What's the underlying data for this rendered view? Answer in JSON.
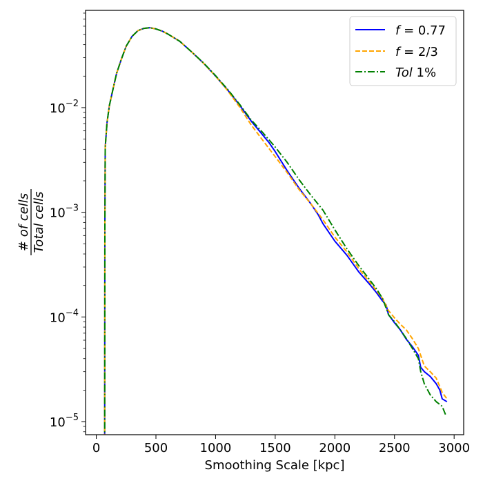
{
  "chart_data": {
    "type": "line",
    "xlabel": "Smoothing Scale [kpc]",
    "ylabel": {
      "numerator": "# of cells",
      "denominator": "Total cells"
    },
    "xlim": [
      -90,
      3080
    ],
    "ylim": [
      7.5e-06,
      0.085
    ],
    "yscale": "log",
    "xticks": [
      0,
      500,
      1000,
      1500,
      2000,
      2500,
      3000
    ],
    "xtick_labels": [
      "0",
      "500",
      "1000",
      "1500",
      "2000",
      "2500",
      "3000"
    ],
    "yticks": [
      1e-05,
      0.0001,
      0.001,
      0.01
    ],
    "ytick_labels": [
      {
        "base": "10",
        "exp": "−5"
      },
      {
        "base": "10",
        "exp": "−4"
      },
      {
        "base": "10",
        "exp": "−3"
      },
      {
        "base": "10",
        "exp": "−2"
      }
    ],
    "grid": false,
    "legend_position": "top-right",
    "series": [
      {
        "name": "f = 0.77",
        "legend": {
          "var": "f",
          "rest": " = 0.77"
        },
        "color": "#0000ff",
        "style": "solid",
        "points": [
          [
            70,
            1e-06
          ],
          [
            72,
            0.0008
          ],
          [
            75,
            0.0042
          ],
          [
            90,
            0.0072
          ],
          [
            110,
            0.0105
          ],
          [
            140,
            0.015
          ],
          [
            170,
            0.0212
          ],
          [
            210,
            0.029
          ],
          [
            250,
            0.0385
          ],
          [
            300,
            0.048
          ],
          [
            350,
            0.0545
          ],
          [
            400,
            0.0572
          ],
          [
            450,
            0.058
          ],
          [
            500,
            0.0565
          ],
          [
            550,
            0.054
          ],
          [
            600,
            0.0505
          ],
          [
            700,
            0.043
          ],
          [
            800,
            0.034
          ],
          [
            900,
            0.0265
          ],
          [
            1000,
            0.02
          ],
          [
            1100,
            0.0148
          ],
          [
            1200,
            0.0106
          ],
          [
            1300,
            0.0074
          ],
          [
            1400,
            0.0054
          ],
          [
            1450,
            0.0046
          ],
          [
            1500,
            0.0038
          ],
          [
            1600,
            0.0025
          ],
          [
            1700,
            0.0017
          ],
          [
            1800,
            0.0012
          ],
          [
            1860,
            0.00095
          ],
          [
            1900,
            0.00078
          ],
          [
            2000,
            0.00053
          ],
          [
            2100,
            0.00039
          ],
          [
            2200,
            0.00027
          ],
          [
            2300,
            0.0002
          ],
          [
            2350,
            0.00017
          ],
          [
            2400,
            0.000142
          ],
          [
            2430,
            0.00013
          ],
          [
            2450,
            0.000105
          ],
          [
            2500,
            8.8e-05
          ],
          [
            2550,
            7.5e-05
          ],
          [
            2600,
            6.1e-05
          ],
          [
            2650,
            5.2e-05
          ],
          [
            2700,
            4.3e-05
          ],
          [
            2720,
            3.3e-05
          ],
          [
            2750,
            3e-05
          ],
          [
            2800,
            2.7e-05
          ],
          [
            2850,
            2.3e-05
          ],
          [
            2880,
            2e-05
          ],
          [
            2900,
            1.65e-05
          ],
          [
            2940,
            1.55e-05
          ]
        ]
      },
      {
        "name": "f = 2/3",
        "legend": {
          "var": "f",
          "rest": " = 2/3"
        },
        "color": "#ffa500",
        "style": "dashed",
        "points": [
          [
            70,
            1e-06
          ],
          [
            72,
            0.0008
          ],
          [
            75,
            0.0042
          ],
          [
            90,
            0.0072
          ],
          [
            110,
            0.0105
          ],
          [
            140,
            0.015
          ],
          [
            170,
            0.0212
          ],
          [
            210,
            0.029
          ],
          [
            250,
            0.0385
          ],
          [
            300,
            0.048
          ],
          [
            350,
            0.0545
          ],
          [
            400,
            0.0572
          ],
          [
            450,
            0.058
          ],
          [
            500,
            0.0565
          ],
          [
            550,
            0.054
          ],
          [
            600,
            0.0505
          ],
          [
            700,
            0.043
          ],
          [
            800,
            0.034
          ],
          [
            900,
            0.0265
          ],
          [
            1000,
            0.02
          ],
          [
            1100,
            0.0146
          ],
          [
            1200,
            0.0102
          ],
          [
            1300,
            0.0068
          ],
          [
            1400,
            0.0048
          ],
          [
            1500,
            0.0034
          ],
          [
            1600,
            0.0024
          ],
          [
            1700,
            0.00165
          ],
          [
            1800,
            0.0012
          ],
          [
            1900,
            0.00085
          ],
          [
            2000,
            0.00058
          ],
          [
            2100,
            0.00042
          ],
          [
            2200,
            0.00029
          ],
          [
            2300,
            0.00021
          ],
          [
            2400,
            0.00015
          ],
          [
            2450,
            0.000115
          ],
          [
            2500,
            9.8e-05
          ],
          [
            2550,
            8.5e-05
          ],
          [
            2600,
            7.5e-05
          ],
          [
            2650,
            6.2e-05
          ],
          [
            2700,
            5e-05
          ],
          [
            2750,
            3.4e-05
          ],
          [
            2800,
            3e-05
          ],
          [
            2850,
            2.6e-05
          ],
          [
            2900,
            1.9e-05
          ],
          [
            2940,
            1.65e-05
          ]
        ]
      },
      {
        "name": "Tol 1%",
        "legend": {
          "var": "Tol",
          "rest": " 1%"
        },
        "color": "#008000",
        "style": "dashdot",
        "points": [
          [
            70,
            1e-06
          ],
          [
            72,
            0.0008
          ],
          [
            75,
            0.0042
          ],
          [
            90,
            0.0072
          ],
          [
            110,
            0.0105
          ],
          [
            140,
            0.015
          ],
          [
            170,
            0.0212
          ],
          [
            210,
            0.029
          ],
          [
            250,
            0.0385
          ],
          [
            300,
            0.048
          ],
          [
            350,
            0.0545
          ],
          [
            400,
            0.0572
          ],
          [
            450,
            0.058
          ],
          [
            500,
            0.0565
          ],
          [
            550,
            0.054
          ],
          [
            600,
            0.0505
          ],
          [
            700,
            0.043
          ],
          [
            800,
            0.034
          ],
          [
            900,
            0.0267
          ],
          [
            1000,
            0.0202
          ],
          [
            1100,
            0.015
          ],
          [
            1200,
            0.0108
          ],
          [
            1300,
            0.0076
          ],
          [
            1400,
            0.0057
          ],
          [
            1500,
            0.0042
          ],
          [
            1600,
            0.003
          ],
          [
            1700,
            0.00205
          ],
          [
            1800,
            0.00145
          ],
          [
            1900,
            0.00105
          ],
          [
            2000,
            0.00068
          ],
          [
            2100,
            0.00045
          ],
          [
            2200,
            0.00031
          ],
          [
            2300,
            0.00022
          ],
          [
            2350,
            0.000185
          ],
          [
            2400,
            0.00015
          ],
          [
            2420,
            0.00013
          ],
          [
            2450,
            0.000105
          ],
          [
            2500,
            9e-05
          ],
          [
            2550,
            7.5e-05
          ],
          [
            2600,
            6.2e-05
          ],
          [
            2650,
            5e-05
          ],
          [
            2700,
            4e-05
          ],
          [
            2720,
            3e-05
          ],
          [
            2750,
            2.3e-05
          ],
          [
            2800,
            1.8e-05
          ],
          [
            2850,
            1.55e-05
          ],
          [
            2900,
            1.4e-05
          ],
          [
            2930,
            1.15e-05
          ]
        ]
      }
    ]
  }
}
